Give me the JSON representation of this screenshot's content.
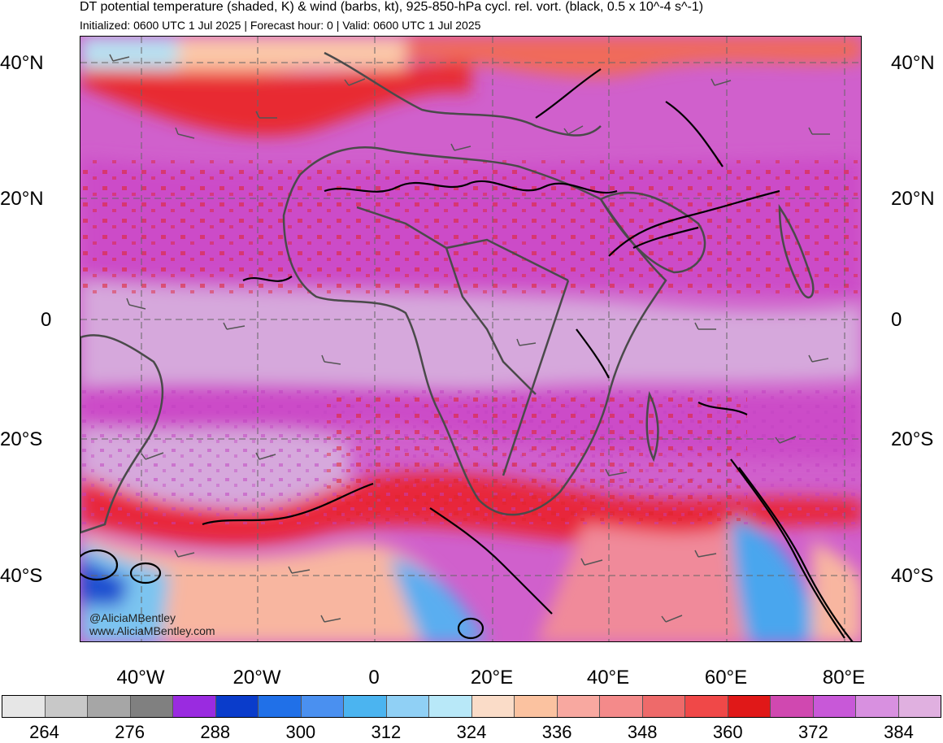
{
  "header": {
    "title": "DT potential temperature (shaded, K) & wind (barbs, kt), 925-850-hPa cycl. rel. vort. (black, 0.5 x 10^-4 s^-1)",
    "subtitle": "Initialized: 0600 UTC 1 Jul 2025 | Forecast hour: 0 | Valid: 0600 UTC 1 Jul 2025"
  },
  "map": {
    "lat_labels": [
      "40°N",
      "20°N",
      "0",
      "20°S",
      "40°S"
    ],
    "lon_labels": [
      "40°W",
      "20°W",
      "0",
      "20°E",
      "40°E",
      "60°E",
      "80°E"
    ],
    "credit_line1": "@AliciaMBentley",
    "credit_line2": "www.AliciaMBentley.com"
  },
  "colorbar": {
    "colors": [
      "#e6e6e6",
      "#c8c8c8",
      "#a6a6a6",
      "#808080",
      "#9a2be0",
      "#0a3ccb",
      "#2070e8",
      "#4a90f0",
      "#4bb4f0",
      "#90d0f5",
      "#b8e8f8",
      "#fadcc8",
      "#fbc2a0",
      "#f8a8a0",
      "#f48a8a",
      "#ee6a6a",
      "#f04848",
      "#e01818",
      "#d048b0",
      "#c858d8",
      "#d890e0",
      "#e0b0e0"
    ],
    "tick_labels": [
      "264",
      "276",
      "288",
      "300",
      "312",
      "324",
      "336",
      "348",
      "360",
      "372",
      "384"
    ]
  }
}
